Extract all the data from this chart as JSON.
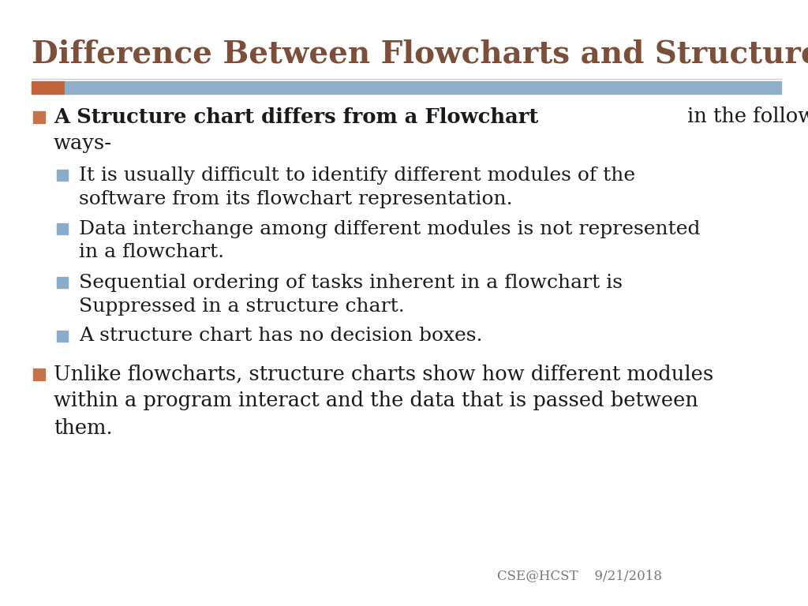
{
  "title": "Difference Between Flowcharts and Structure Charts",
  "title_color": "#7B4F3A",
  "background_color": "#FFFFFF",
  "accent_bar_orange": "#C0623A",
  "accent_bar_blue": "#8FAEC8",
  "bullet_square_orange": "#C8724A",
  "bullet_square_blue": "#8AACCB",
  "text_color": "#1A1A1A",
  "footer_text": "CSE@HCST    9/21/2018",
  "footer_color": "#777777",
  "title_fontsize": 28,
  "body_fontsize": 18.5,
  "sub_fontsize": 18.0,
  "footer_fontsize": 12,
  "main_bullet_bold": "A Structure chart differs from a Flowchart",
  "main_bullet_normal": " in the following",
  "main_bullet_normal2": "ways-",
  "sub_bullets": [
    [
      "It is usually difficult to identify different modules of the",
      "software from its flowchart representation."
    ],
    [
      "Data interchange among different modules is not represented",
      "in a flowchart."
    ],
    [
      "Sequential ordering of tasks inherent in a flowchart is",
      "Suppressed in a structure chart."
    ],
    [
      "A structure chart has no decision boxes."
    ]
  ],
  "second_bullet_lines": [
    "Unlike flowcharts, structure charts show how different modules",
    "within a program interact and the data that is passed between",
    "them."
  ]
}
